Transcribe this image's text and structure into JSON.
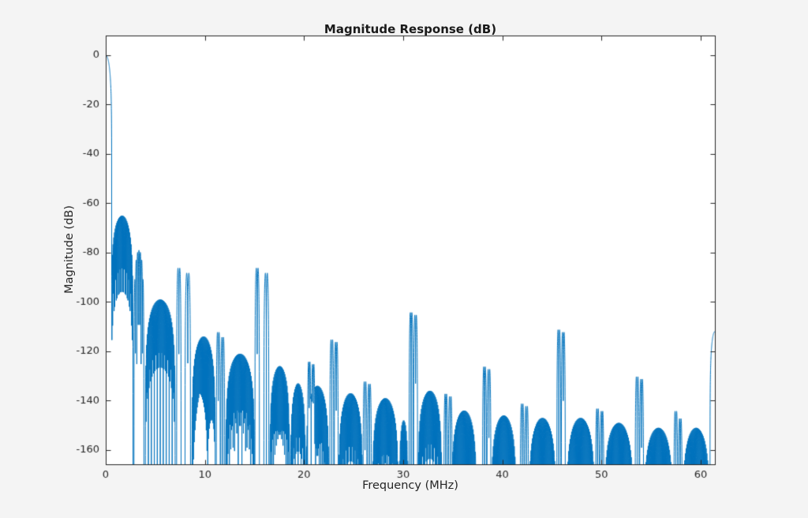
{
  "figure": {
    "title": "Magnitude Response (dB)"
  },
  "chart_data": {
    "type": "line",
    "title": "Magnitude Response (dB)",
    "xlabel": "Frequency (MHz)",
    "ylabel": "Magnitude (dB)",
    "xlim": [
      0,
      61.44
    ],
    "ylim": [
      -165.8,
      8
    ],
    "xticks": [
      0,
      10,
      20,
      30,
      40,
      50,
      60
    ],
    "yticks": [
      0,
      -20,
      -40,
      -60,
      -80,
      -100,
      -120,
      -140,
      -160
    ],
    "grid": false,
    "legend": null,
    "colors": {
      "line": "#0072BD",
      "axis": "#262626",
      "figure_bg": "#F4F4F4",
      "plot_bg": "#FFFFFF"
    },
    "main_lobe": {
      "f0": -0.6,
      "f1": 0.6,
      "peak": 0,
      "nulls": 1
    },
    "sidelobes": [
      {
        "f0": 0.55,
        "f1": 2.75,
        "peak": -65,
        "nulls": 30
      },
      {
        "f0": 2.85,
        "f1": 3.85,
        "peak": -79,
        "nulls": 7
      },
      {
        "f0": 4.0,
        "f1": 7.0,
        "peak": -99,
        "nulls": 40
      },
      {
        "f0": 8.7,
        "f1": 11.05,
        "peak": -114,
        "nulls": 31
      },
      {
        "f0": 12.1,
        "f1": 15.0,
        "peak": -121,
        "nulls": 39
      },
      {
        "f0": 16.55,
        "f1": 18.55,
        "peak": -126,
        "nulls": 27
      },
      {
        "f0": 18.65,
        "f1": 20.15,
        "peak": -133,
        "nulls": 20
      },
      {
        "f0": 20.2,
        "f1": 22.5,
        "peak": -134,
        "nulls": 31
      },
      {
        "f0": 23.5,
        "f1": 25.9,
        "peak": -137,
        "nulls": 32
      },
      {
        "f0": 26.9,
        "f1": 29.5,
        "peak": -139,
        "nulls": 35
      },
      {
        "f0": 29.6,
        "f1": 30.5,
        "peak": -148,
        "nulls": 12
      },
      {
        "f0": 31.5,
        "f1": 33.9,
        "peak": -136,
        "nulls": 32
      },
      {
        "f0": 34.9,
        "f1": 37.4,
        "peak": -144,
        "nulls": 33
      },
      {
        "f0": 38.9,
        "f1": 41.4,
        "peak": -146,
        "nulls": 33
      },
      {
        "f0": 42.7,
        "f1": 45.4,
        "peak": -147,
        "nulls": 36
      },
      {
        "f0": 46.5,
        "f1": 49.3,
        "peak": -147,
        "nulls": 37
      },
      {
        "f0": 50.3,
        "f1": 53.2,
        "peak": -149,
        "nulls": 39
      },
      {
        "f0": 54.3,
        "f1": 57.2,
        "peak": -151,
        "nulls": 39
      },
      {
        "f0": 58.2,
        "f1": 60.9,
        "peak": -151,
        "nulls": 36
      }
    ],
    "image_spikes": [
      {
        "f0": 7.15,
        "f1": 7.6,
        "peak": -84,
        "nulls": 2
      },
      {
        "f0": 8.0,
        "f1": 8.55,
        "peak": -86,
        "nulls": 2
      },
      {
        "f0": 11.15,
        "f1": 11.55,
        "peak": -110,
        "nulls": 2
      },
      {
        "f0": 11.6,
        "f1": 12.0,
        "peak": -112,
        "nulls": 2
      },
      {
        "f0": 15.05,
        "f1": 15.5,
        "peak": -84,
        "nulls": 2
      },
      {
        "f0": 15.95,
        "f1": 16.45,
        "peak": -86,
        "nulls": 2
      },
      {
        "f0": 20.35,
        "f1": 20.7,
        "peak": -122,
        "nulls": 2
      },
      {
        "f0": 20.75,
        "f1": 21.1,
        "peak": -123,
        "nulls": 2
      },
      {
        "f0": 22.6,
        "f1": 23.0,
        "peak": -113,
        "nulls": 2
      },
      {
        "f0": 23.05,
        "f1": 23.45,
        "peak": -114,
        "nulls": 2
      },
      {
        "f0": 25.95,
        "f1": 26.35,
        "peak": -130,
        "nulls": 2
      },
      {
        "f0": 26.4,
        "f1": 26.8,
        "peak": -131,
        "nulls": 2
      },
      {
        "f0": 30.6,
        "f1": 31.0,
        "peak": -102,
        "nulls": 2
      },
      {
        "f0": 31.05,
        "f1": 31.45,
        "peak": -103,
        "nulls": 2
      },
      {
        "f0": 34.1,
        "f1": 34.5,
        "peak": -135,
        "nulls": 2
      },
      {
        "f0": 34.55,
        "f1": 34.95,
        "peak": -136,
        "nulls": 2
      },
      {
        "f0": 38.0,
        "f1": 38.4,
        "peak": -124,
        "nulls": 2
      },
      {
        "f0": 38.45,
        "f1": 38.85,
        "peak": -125,
        "nulls": 2
      },
      {
        "f0": 41.8,
        "f1": 42.2,
        "peak": -139,
        "nulls": 2
      },
      {
        "f0": 42.25,
        "f1": 42.65,
        "peak": -140,
        "nulls": 2
      },
      {
        "f0": 45.5,
        "f1": 45.9,
        "peak": -109,
        "nulls": 2
      },
      {
        "f0": 45.95,
        "f1": 46.35,
        "peak": -110,
        "nulls": 2
      },
      {
        "f0": 49.4,
        "f1": 49.8,
        "peak": -141,
        "nulls": 2
      },
      {
        "f0": 49.85,
        "f1": 50.25,
        "peak": -142,
        "nulls": 2
      },
      {
        "f0": 53.4,
        "f1": 53.8,
        "peak": -128,
        "nulls": 2
      },
      {
        "f0": 53.85,
        "f1": 54.25,
        "peak": -129,
        "nulls": 2
      },
      {
        "f0": 57.3,
        "f1": 57.7,
        "peak": -142,
        "nulls": 2
      },
      {
        "f0": 57.75,
        "f1": 58.15,
        "peak": -145,
        "nulls": 2
      },
      {
        "f0": 60.95,
        "f1": 61.93,
        "peak": -112,
        "nulls": 1
      }
    ]
  }
}
